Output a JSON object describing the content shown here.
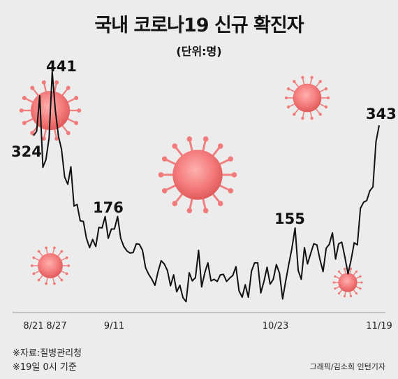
{
  "title": "국내 코로나19 신규 확진자",
  "subtitle": "(단위:명)",
  "notes": [
    "※자료:질병관리청",
    "※19일 0시 기준"
  ],
  "credit": "그래픽/김소희 인턴기자",
  "colors": {
    "background": "#ececec",
    "line": "#111111",
    "axis": "#9a9a9a",
    "virus": "#f07878"
  },
  "chart_data": {
    "type": "line",
    "x_start": "2020-08-21",
    "x_end": "2020-11-19",
    "ylim": [
      0,
      470
    ],
    "x_ticks": [
      {
        "date": "2020-08-21",
        "label": "8/21"
      },
      {
        "date": "2020-08-27",
        "label": "8/27"
      },
      {
        "date": "2020-09-11",
        "label": "9/11"
      },
      {
        "date": "2020-10-23",
        "label": "10/23"
      },
      {
        "date": "2020-11-19",
        "label": "11/19"
      }
    ],
    "series": [
      {
        "values": [
          324,
          332,
          397,
          266,
          280,
          320,
          441,
          371,
          323,
          299,
          248,
          235,
          267,
          195,
          198,
          168,
          167,
          136,
          119,
          134,
          121,
          156,
          155,
          176,
          136,
          153,
          153,
          176,
          136,
          121,
          113,
          109,
          110,
          126,
          125,
          114,
          82,
          70,
          61,
          50,
          75,
          95,
          89,
          77,
          49,
          69,
          38,
          50,
          27,
          20,
          73,
          58,
          64,
          114,
          47,
          73,
          91,
          58,
          61,
          57,
          69,
          70,
          57,
          63,
          68,
          84,
          40,
          28,
          51,
          28,
          76,
          91,
          91,
          36,
          57,
          83,
          52,
          61,
          88,
          72,
          25,
          58,
          89,
          118,
          155,
          77,
          61,
          119,
          89,
          108,
          126,
          124,
          97,
          75,
          118,
          125,
          146,
          98,
          126,
          129,
          102,
          71,
          97,
          128,
          124,
          191,
          202,
          205,
          223,
          230,
          313,
          343
        ]
      }
    ],
    "annotations": [
      {
        "label": "324",
        "value": 324
      },
      {
        "label": "441",
        "value": 441
      },
      {
        "label": "176",
        "value": 176
      },
      {
        "label": "155",
        "value": 155
      },
      {
        "label": "343",
        "value": 343
      }
    ]
  }
}
